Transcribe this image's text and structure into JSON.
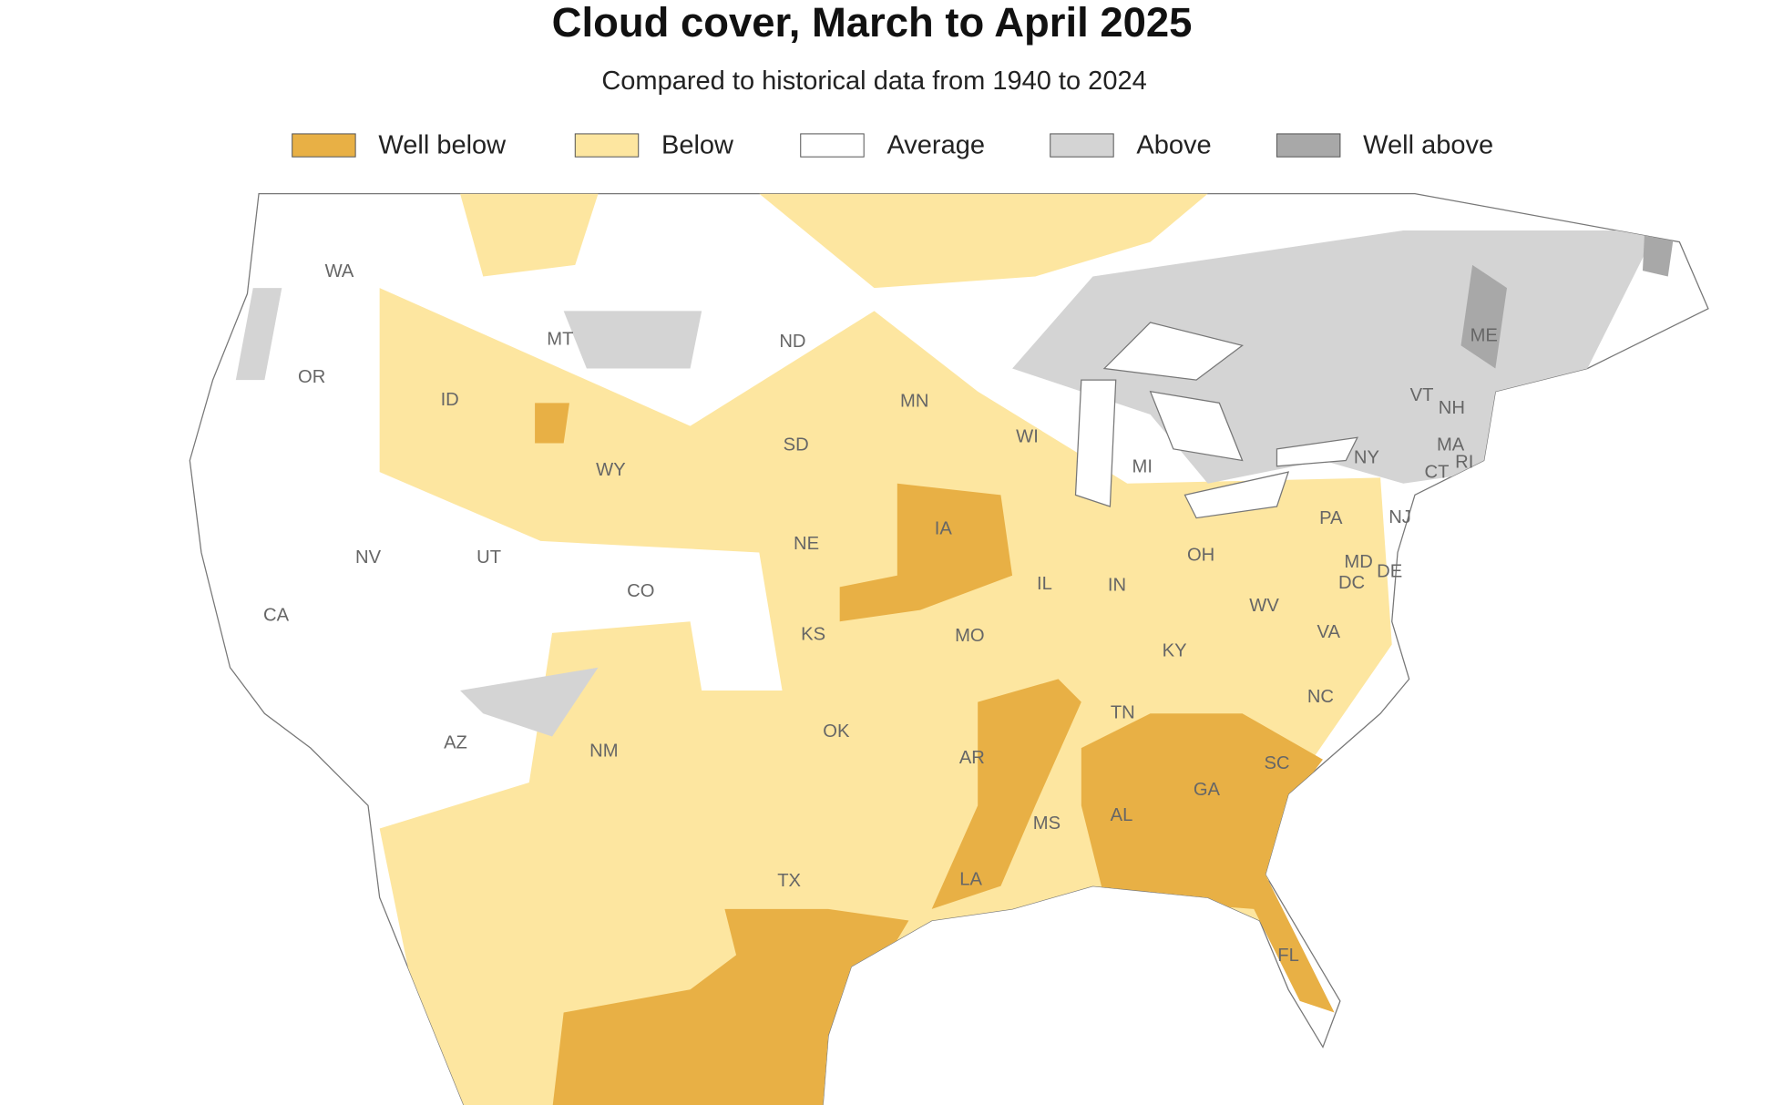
{
  "header": {
    "title": "Cloud cover, March to April 2025",
    "subtitle": "Compared to historical data from 1940 to 2024"
  },
  "legend": [
    {
      "label": "Well below",
      "color": "#e8b045"
    },
    {
      "label": "Below",
      "color": "#fde6a0"
    },
    {
      "label": "Average",
      "color": "#ffffff"
    },
    {
      "label": "Above",
      "color": "#d4d4d4"
    },
    {
      "label": "Well above",
      "color": "#a8a8a8"
    }
  ],
  "states": [
    "WA",
    "OR",
    "CA",
    "NV",
    "ID",
    "MT",
    "WY",
    "UT",
    "AZ",
    "CO",
    "NM",
    "ND",
    "SD",
    "NE",
    "KS",
    "OK",
    "TX",
    "MN",
    "IA",
    "MO",
    "AR",
    "LA",
    "WI",
    "IL",
    "MI",
    "IN",
    "OH",
    "KY",
    "TN",
    "MS",
    "AL",
    "GA",
    "FL",
    "SC",
    "NC",
    "VA",
    "WV",
    "PA",
    "NY",
    "VT",
    "NH",
    "ME",
    "MA",
    "CT",
    "RI",
    "NJ",
    "DE",
    "MD",
    "DC"
  ]
}
